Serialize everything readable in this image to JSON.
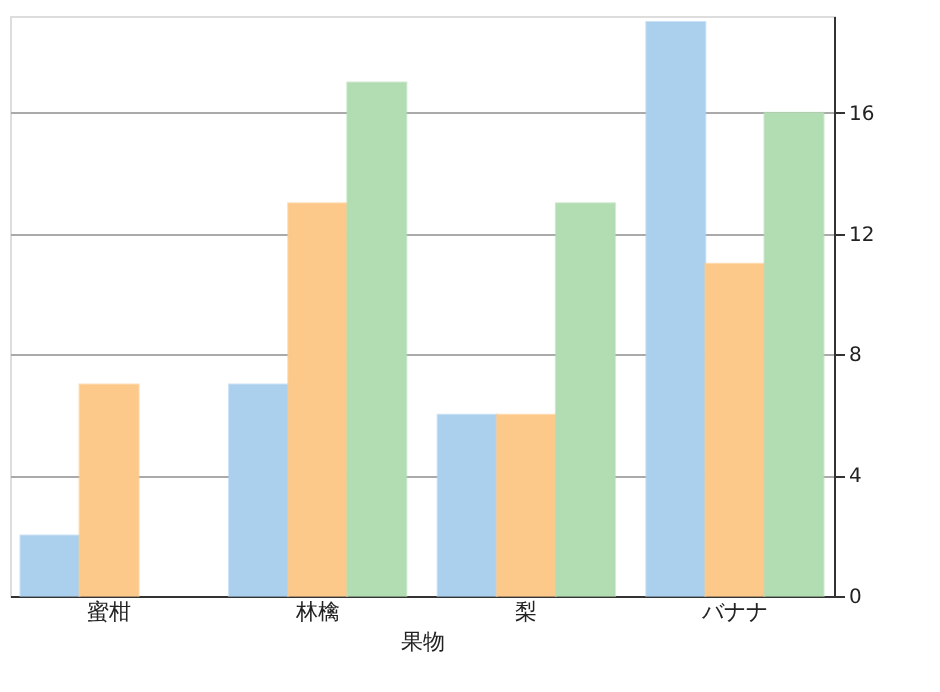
{
  "chart_data": {
    "type": "bar",
    "xlabel": "果物",
    "categories": [
      "蜜柑",
      "林檎",
      "梨",
      "バナナ"
    ],
    "series": [
      {
        "color": "#abd0ee",
        "values": [
          2,
          7,
          6,
          19
        ]
      },
      {
        "color": "#fdc98a",
        "values": [
          7,
          13,
          6,
          11
        ]
      },
      {
        "color": "#b2dcb2",
        "values": [
          null,
          17,
          13,
          16
        ]
      }
    ],
    "ylim": [
      0,
      19.2
    ],
    "yticks": [
      0,
      4,
      8,
      12,
      16
    ],
    "grid": "y",
    "legend": false
  }
}
